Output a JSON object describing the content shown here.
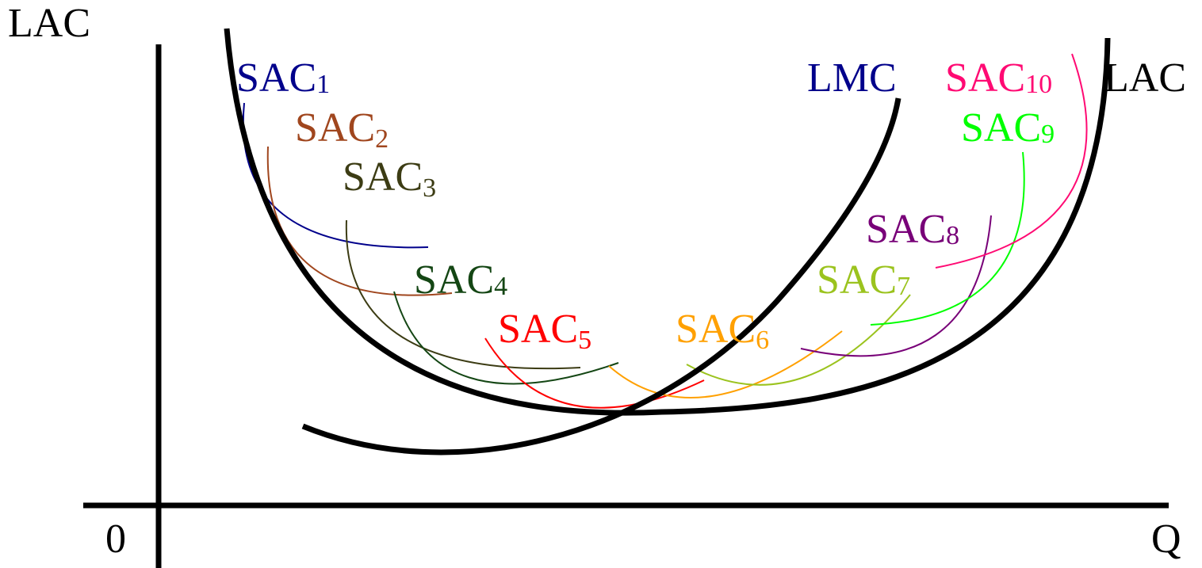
{
  "axes": {
    "y_label": "LAC",
    "x_label": "Q",
    "origin_label": "0"
  },
  "curves": {
    "lac": {
      "label": "LAC",
      "color": "#000000"
    },
    "lmc": {
      "label": "LMC",
      "color": "#00008b"
    },
    "sac": [
      {
        "label": "SAC",
        "sub": "1",
        "color": "#00008b"
      },
      {
        "label": "SAC",
        "sub": "2",
        "color": "#a0461e"
      },
      {
        "label": "SAC",
        "sub": "3",
        "color": "#3c3c14"
      },
      {
        "label": "SAC",
        "sub": "4",
        "color": "#144614"
      },
      {
        "label": "SAC",
        "sub": "5",
        "color": "#ff0000"
      },
      {
        "label": "SAC",
        "sub": "6",
        "color": "#ffa000"
      },
      {
        "label": "SAC",
        "sub": "7",
        "color": "#9bc31e"
      },
      {
        "label": "SAC",
        "sub": "8",
        "color": "#780078"
      },
      {
        "label": "SAC",
        "sub": "9",
        "color": "#00ff00"
      },
      {
        "label": "SAC",
        "sub": "10",
        "color": "#ff0a73"
      }
    ]
  }
}
